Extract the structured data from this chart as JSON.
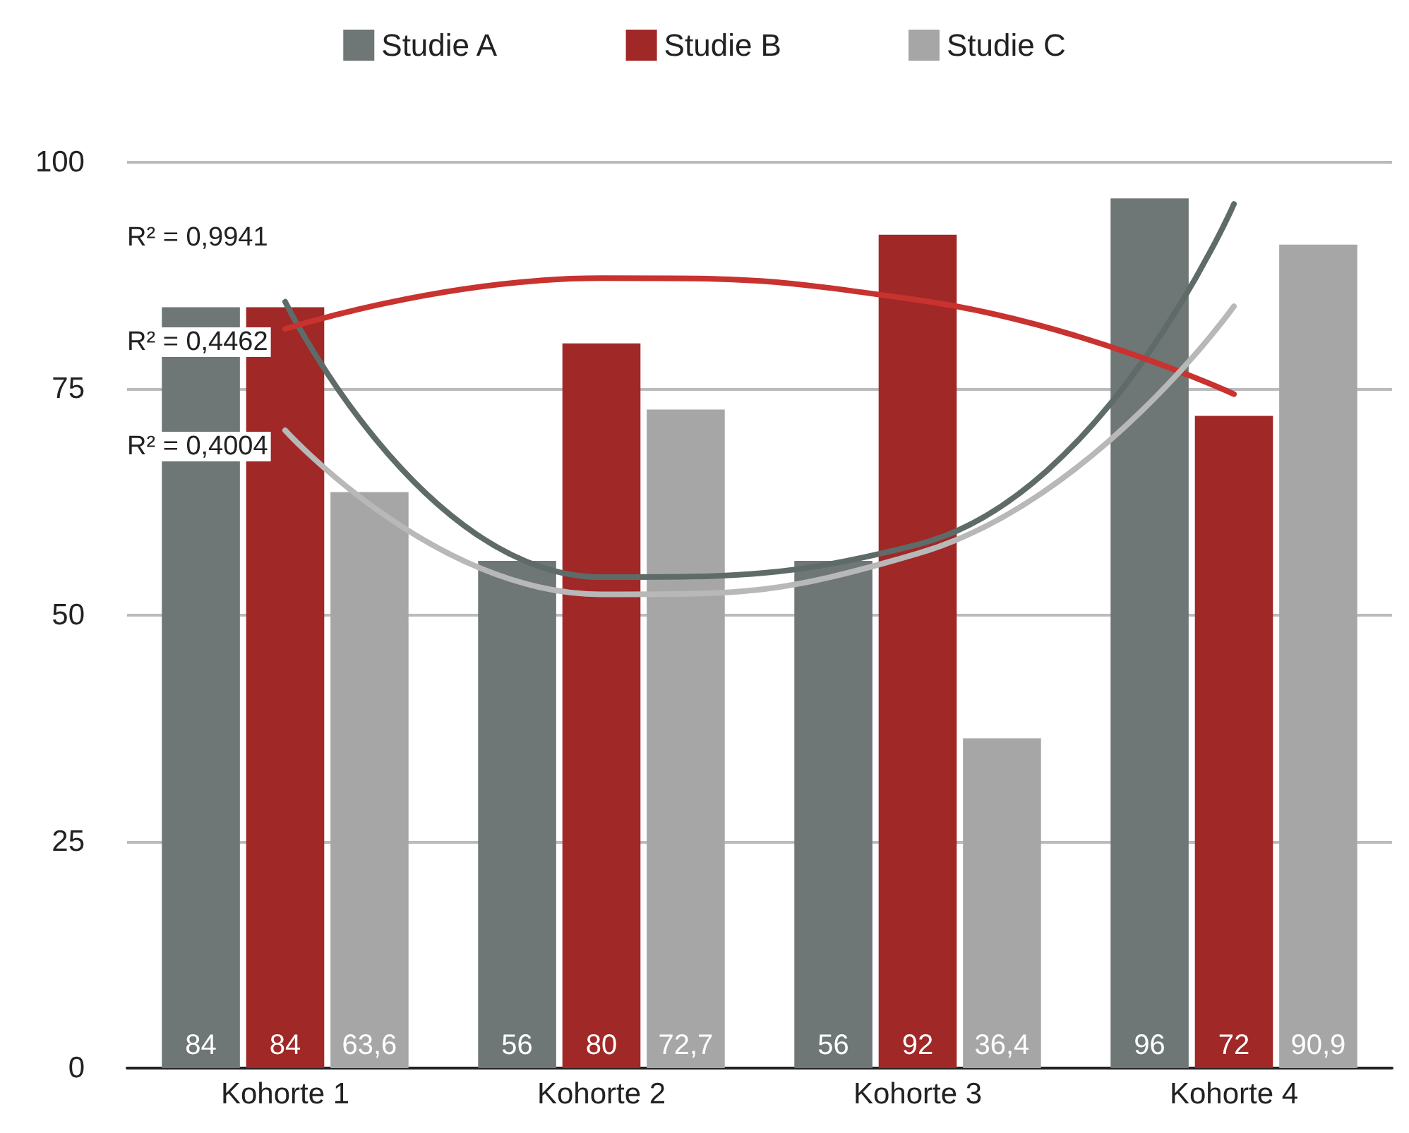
{
  "chart_data": {
    "type": "bar",
    "categories": [
      "Kohorte 1",
      "Kohorte 2",
      "Kohorte 3",
      "Kohorte 4"
    ],
    "series": [
      {
        "name": "Studie A",
        "color": "#6e7676",
        "values": [
          84,
          56,
          56,
          96
        ],
        "value_labels": [
          "84",
          "56",
          "56",
          "96"
        ]
      },
      {
        "name": "Studie B",
        "color": "#a02826",
        "values": [
          84,
          80,
          92,
          72
        ],
        "value_labels": [
          "84",
          "80",
          "92",
          "72"
        ]
      },
      {
        "name": "Studie C",
        "color": "#a6a6a6",
        "values": [
          63.6,
          72.7,
          36.4,
          90.9
        ],
        "value_labels": [
          "63,6",
          "72,7",
          "36,4",
          "90,9"
        ]
      },
      {
        "type": "line",
        "color": "#5f6b68",
        "x": [
          "Kohorte 1",
          "Kohorte 2",
          "Kohorte 3",
          "Kohorte 4"
        ],
        "values": [
          84.6,
          54.2,
          57.8,
          95.4
        ]
      },
      {
        "type": "line",
        "color": "#c8322f",
        "x": [
          "Kohorte 1",
          "Kohorte 2",
          "Kohorte 3",
          "Kohorte 4"
        ],
        "values": [
          81.6,
          87.2,
          84.8,
          74.4
        ]
      },
      {
        "type": "line",
        "color": "#b8b8b8",
        "x": [
          "Kohorte 1",
          "Kohorte 2",
          "Kohorte 3",
          "Kohorte 4"
        ],
        "values": [
          70.4,
          52.3,
          56.8,
          84.1
        ]
      }
    ],
    "ylim": [
      0,
      100
    ],
    "yticks": [
      0,
      25,
      50,
      75,
      100
    ],
    "grid": "y",
    "legend": "top",
    "annotations": [
      "R² = 0,9941",
      "R² = 0,4462",
      "R² = 0,4004"
    ]
  }
}
